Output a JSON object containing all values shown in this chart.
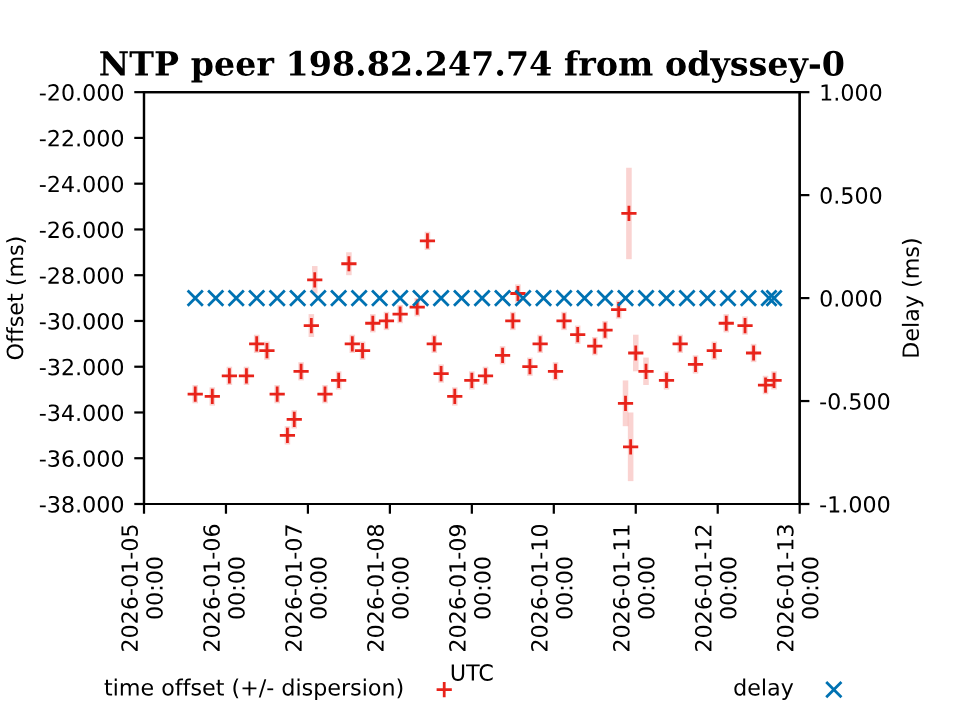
{
  "chart_data": {
    "type": "scatter",
    "title": "NTP peer 198.82.247.74 from odyssey-0",
    "xlabel": "UTC",
    "ylabel": "Offset (ms)",
    "y2label": "Delay (ms)",
    "xlim": [
      "2026-01-05",
      "2026-01-13"
    ],
    "xticks": [
      {
        "value": "2026-01-05",
        "label": "2026-01-05\n00:00"
      },
      {
        "value": "2026-01-06",
        "label": "2026-01-06\n00:00"
      },
      {
        "value": "2026-01-07",
        "label": "2026-01-07\n00:00"
      },
      {
        "value": "2026-01-08",
        "label": "2026-01-08\n00:00"
      },
      {
        "value": "2026-01-09",
        "label": "2026-01-09\n00:00"
      },
      {
        "value": "2026-01-10",
        "label": "2026-01-10\n00:00"
      },
      {
        "value": "2026-01-11",
        "label": "2026-01-11\n00:00"
      },
      {
        "value": "2026-01-12",
        "label": "2026-01-12\n00:00"
      },
      {
        "value": "2026-01-13",
        "label": "2026-01-13\n00:00"
      }
    ],
    "ylim": [
      -38,
      -20
    ],
    "yticks": [
      {
        "value": -38,
        "label": "-38.000"
      },
      {
        "value": -36,
        "label": "-36.000"
      },
      {
        "value": -34,
        "label": "-34.000"
      },
      {
        "value": -32,
        "label": "-32.000"
      },
      {
        "value": -30,
        "label": "-30.000"
      },
      {
        "value": -28,
        "label": "-28.000"
      },
      {
        "value": -26,
        "label": "-26.000"
      },
      {
        "value": -24,
        "label": "-24.000"
      },
      {
        "value": -22,
        "label": "-22.000"
      },
      {
        "value": -20,
        "label": "-20.000"
      }
    ],
    "y2lim": [
      -1,
      1
    ],
    "y2ticks": [
      {
        "value": -1,
        "label": "-1.000"
      },
      {
        "value": -0.5,
        "label": "-0.500"
      },
      {
        "value": 0,
        "label": "0.000"
      },
      {
        "value": 0.5,
        "label": "0.500"
      },
      {
        "value": 1,
        "label": "1.000"
      }
    ],
    "grid": false,
    "legend": "bottom",
    "series": [
      {
        "name": "time offset (+/- dispersion)",
        "color": "#e8231a",
        "marker": "cross",
        "x": [
          "2026-01-05T15:00",
          "2026-01-05T20:00",
          "2026-01-06T01:00",
          "2026-01-06T06:00",
          "2026-01-06T09:00",
          "2026-01-06T12:00",
          "2026-01-06T15:00",
          "2026-01-06T18:00",
          "2026-01-06T20:00",
          "2026-01-06T22:00",
          "2026-01-07T01:00",
          "2026-01-07T02:00",
          "2026-01-07T05:00",
          "2026-01-07T09:00",
          "2026-01-07T12:00",
          "2026-01-07T13:00",
          "2026-01-07T16:00",
          "2026-01-07T19:00",
          "2026-01-07T23:00",
          "2026-01-08T03:00",
          "2026-01-08T08:00",
          "2026-01-08T11:00",
          "2026-01-08T13:00",
          "2026-01-08T15:00",
          "2026-01-08T19:00",
          "2026-01-09T00:00",
          "2026-01-09T04:00",
          "2026-01-09T09:00",
          "2026-01-09T12:00",
          "2026-01-09T13:30",
          "2026-01-09T17:00",
          "2026-01-09T20:00",
          "2026-01-10T00:30",
          "2026-01-10T03:00",
          "2026-01-10T07:00",
          "2026-01-10T12:00",
          "2026-01-10T15:00",
          "2026-01-10T19:00",
          "2026-01-10T21:00",
          "2026-01-10T22:00",
          "2026-01-10T22:30",
          "2026-01-11T00:00",
          "2026-01-11T03:00",
          "2026-01-11T09:00",
          "2026-01-11T13:00",
          "2026-01-11T17:30",
          "2026-01-11T23:00",
          "2026-01-12T02:30",
          "2026-01-12T08:00",
          "2026-01-12T10:30",
          "2026-01-12T14:00",
          "2026-01-12T16:30"
        ],
        "values": [
          -33.2,
          -33.3,
          -32.4,
          -32.4,
          -31.0,
          -31.3,
          -33.2,
          -35.0,
          -34.3,
          -32.2,
          -30.2,
          -28.2,
          -33.2,
          -32.6,
          -27.5,
          -31.0,
          -31.3,
          -30.1,
          -30.0,
          -29.7,
          -29.4,
          -26.5,
          -31.0,
          -32.3,
          -33.3,
          -32.6,
          -32.4,
          -31.5,
          -30.0,
          -28.8,
          -32.0,
          -31.0,
          -32.2,
          -30.0,
          -30.6,
          -31.1,
          -30.4,
          -29.5,
          -33.6,
          -25.3,
          -35.5,
          -31.4,
          -32.2,
          -32.6,
          -31.0,
          -31.9,
          -31.3,
          -30.1,
          -30.2,
          -31.4,
          -32.8,
          -32.6
        ],
        "errors": [
          0.4,
          0.4,
          0.4,
          0.4,
          0.4,
          0.4,
          0.4,
          0.4,
          0.4,
          0.4,
          0.5,
          0.6,
          0.4,
          0.4,
          0.5,
          0.4,
          0.4,
          0.4,
          0.4,
          0.4,
          0.4,
          0.4,
          0.4,
          0.4,
          0.4,
          0.4,
          0.4,
          0.4,
          0.4,
          0.4,
          0.4,
          0.4,
          0.4,
          0.4,
          0.4,
          0.4,
          0.4,
          0.4,
          1.0,
          2.0,
          1.5,
          0.8,
          0.6,
          0.4,
          0.4,
          0.4,
          0.4,
          0.4,
          0.4,
          0.4,
          0.4,
          0.4
        ]
      },
      {
        "name": "delay",
        "color": "#0072b2",
        "marker": "x",
        "axis": "y2",
        "x": [
          "2026-01-05T15:00",
          "2026-01-05T21:00",
          "2026-01-06T03:00",
          "2026-01-06T09:00",
          "2026-01-06T15:00",
          "2026-01-06T21:00",
          "2026-01-07T03:00",
          "2026-01-07T09:00",
          "2026-01-07T15:00",
          "2026-01-07T21:00",
          "2026-01-08T03:00",
          "2026-01-08T09:00",
          "2026-01-08T15:00",
          "2026-01-08T21:00",
          "2026-01-09T03:00",
          "2026-01-09T09:00",
          "2026-01-09T15:00",
          "2026-01-09T21:00",
          "2026-01-10T03:00",
          "2026-01-10T09:00",
          "2026-01-10T15:00",
          "2026-01-10T21:00",
          "2026-01-11T03:00",
          "2026-01-11T09:00",
          "2026-01-11T15:00",
          "2026-01-11T21:00",
          "2026-01-12T03:00",
          "2026-01-12T09:00",
          "2026-01-12T15:00",
          "2026-01-12T16:30"
        ],
        "values": [
          0.0,
          0.0,
          0.0,
          0.0,
          0.0,
          0.0,
          0.0,
          0.0,
          0.0,
          0.0,
          0.0,
          0.0,
          0.0,
          0.0,
          0.0,
          0.0,
          0.0,
          0.0,
          0.0,
          0.0,
          0.0,
          0.0,
          0.0,
          0.0,
          0.0,
          0.0,
          0.0,
          0.0,
          0.0,
          0.0
        ]
      }
    ]
  }
}
